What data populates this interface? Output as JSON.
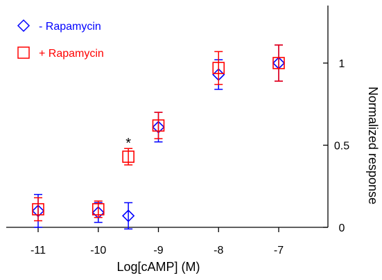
{
  "chart_data": {
    "type": "scatter",
    "xlabel": "Log[cAMP] (M)",
    "ylabel": "Normalized response",
    "xlim": [
      -11.5,
      -5.5
    ],
    "ylim": [
      -0.02,
      1.35
    ],
    "x_ticks": [
      -11,
      -10,
      -9,
      -8,
      -7
    ],
    "x_tick_labels": [
      "-11",
      "-10",
      "-9",
      "-8",
      "-7"
    ],
    "y_ticks": [
      0,
      0.5,
      1
    ],
    "y_tick_labels": [
      "0",
      "0.5",
      "1"
    ],
    "y_axis_side": "right",
    "grid": false,
    "legend_position": "top-left",
    "series": [
      {
        "name": "- Rapamycin",
        "marker": "diamond",
        "color": "#0000ff",
        "points": [
          {
            "x": -11,
            "y": 0.1,
            "err": 0.1
          },
          {
            "x": -10,
            "y": 0.09,
            "err": 0.06
          },
          {
            "x": -9.5,
            "y": 0.07,
            "err": 0.08
          },
          {
            "x": -9,
            "y": 0.61,
            "err": 0.09
          },
          {
            "x": -8,
            "y": 0.93,
            "err": 0.09
          },
          {
            "x": -7,
            "y": 1.0,
            "err": 0.11
          }
        ]
      },
      {
        "name": "+ Rapamycin",
        "marker": "square",
        "color": "#ff0000",
        "points": [
          {
            "x": -11,
            "y": 0.11,
            "err": 0.07
          },
          {
            "x": -10,
            "y": 0.11,
            "err": 0.05
          },
          {
            "x": -9.5,
            "y": 0.43,
            "err": 0.05
          },
          {
            "x": -9,
            "y": 0.62,
            "err": 0.08
          },
          {
            "x": -8,
            "y": 0.97,
            "err": 0.1
          },
          {
            "x": -7,
            "y": 1.0,
            "err": 0.11
          }
        ]
      }
    ],
    "annotations": [
      {
        "text": "*",
        "x": -9.5,
        "y": 0.535
      }
    ]
  }
}
